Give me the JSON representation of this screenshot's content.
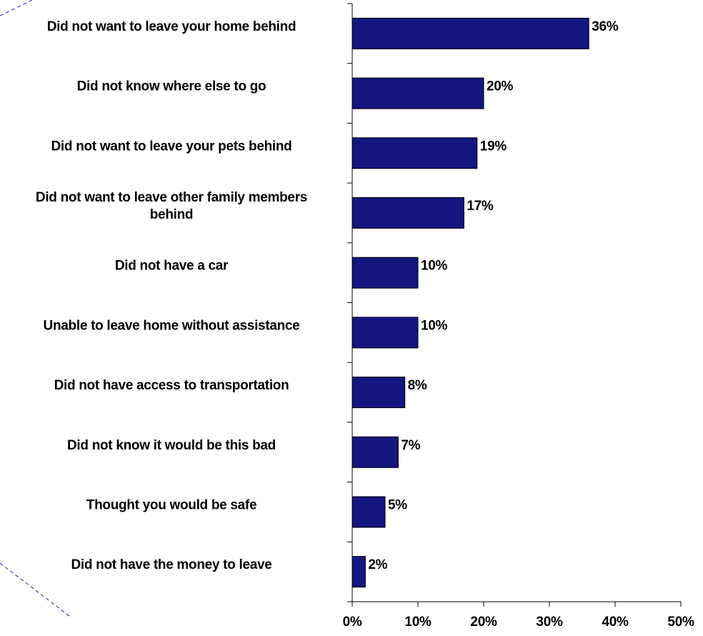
{
  "chart_data": {
    "type": "bar",
    "orientation": "horizontal",
    "categories": [
      "Did not want to leave your home behind",
      "Did not know where else to go",
      "Did not want to leave your pets behind",
      "Did not want to leave other family members behind",
      "Did not have a car",
      "Unable to leave home without assistance",
      "Did not have access to transportation",
      "Did not know it would be this bad",
      "Thought you would be safe",
      "Did not have the money to leave"
    ],
    "category_lines": [
      [
        "Did not want to leave your home behind"
      ],
      [
        "Did not know where else to go"
      ],
      [
        "Did not want to leave your pets behind"
      ],
      [
        "Did not want to leave other family members",
        "behind"
      ],
      [
        "Did not have a car"
      ],
      [
        "Unable to leave home without assistance"
      ],
      [
        "Did not have access to transportation"
      ],
      [
        "Did not know it would be this bad"
      ],
      [
        "Thought you would be safe"
      ],
      [
        "Did not have the money to leave"
      ]
    ],
    "values": [
      36,
      20,
      19,
      17,
      10,
      10,
      8,
      7,
      5,
      2
    ],
    "data_labels": [
      "36%",
      "20%",
      "19%",
      "17%",
      "10%",
      "10%",
      "8%",
      "7%",
      "5%",
      "2%"
    ],
    "xlim": [
      0,
      50
    ],
    "xticks": [
      0,
      10,
      20,
      30,
      40,
      50
    ],
    "xtick_labels": [
      "0%",
      "10%",
      "20%",
      "30%",
      "40%",
      "50%"
    ],
    "bar_color": "#15157f",
    "bar_edge_color": "#000000",
    "grid": false,
    "legend": "none",
    "decoration_color": "#3b3bc4"
  }
}
